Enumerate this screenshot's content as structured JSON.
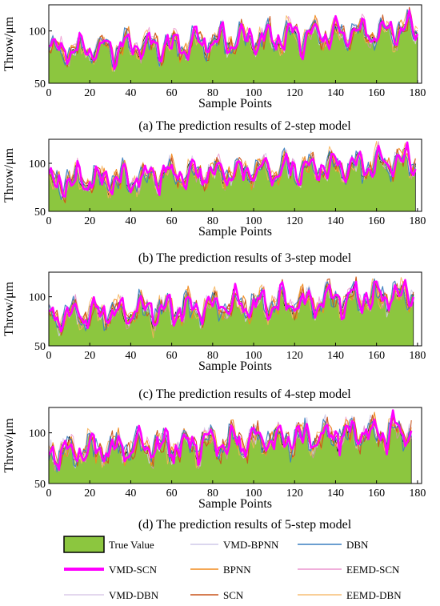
{
  "chart_data": {
    "type": "line",
    "panels": [
      {
        "caption": "(a) The prediction results of 2-step model",
        "xlabel": "Sample Points",
        "ylabel": "Throw/μm",
        "xlim": [
          0,
          182
        ],
        "ylim": [
          50,
          125
        ],
        "xticks": [
          0,
          20,
          40,
          60,
          80,
          100,
          120,
          140,
          160,
          180
        ],
        "yticks": [
          50,
          100
        ],
        "n_points": 180
      },
      {
        "caption": "(b) The prediction results of 3-step model",
        "xlabel": "Sample Points",
        "ylabel": "Throw/μm",
        "xlim": [
          0,
          182
        ],
        "ylim": [
          50,
          125
        ],
        "xticks": [
          0,
          20,
          40,
          60,
          80,
          100,
          120,
          140,
          160,
          180
        ],
        "yticks": [
          50,
          100
        ],
        "n_points": 179
      },
      {
        "caption": "(c) The prediction results of 4-step model",
        "xlabel": "Sample Points",
        "ylabel": "Throw/μm",
        "xlim": [
          0,
          182
        ],
        "ylim": [
          50,
          125
        ],
        "xticks": [
          0,
          20,
          40,
          60,
          80,
          100,
          120,
          140,
          160,
          180
        ],
        "yticks": [
          50,
          100
        ],
        "n_points": 178
      },
      {
        "caption": "(d) The prediction results of 5-step model",
        "xlabel": "Sample Points",
        "ylabel": "Throw/μm",
        "xlim": [
          0,
          182
        ],
        "ylim": [
          50,
          125
        ],
        "xticks": [
          0,
          20,
          40,
          60,
          80,
          100,
          120,
          140,
          160,
          180
        ],
        "yticks": [
          50,
          100
        ],
        "n_points": 177
      }
    ],
    "series": [
      {
        "name": "True Value",
        "kind": "area",
        "color": "#8cc63f"
      },
      {
        "name": "VMD-BPNN",
        "kind": "line",
        "color": "#cfc8e8"
      },
      {
        "name": "DBN",
        "kind": "line",
        "color": "#3a7fc0"
      },
      {
        "name": "VMD-SCN",
        "kind": "line",
        "color": "#ff00ff"
      },
      {
        "name": "BPNN",
        "kind": "line",
        "color": "#f08a1c"
      },
      {
        "name": "EEMD-SCN",
        "kind": "line",
        "color": "#e87fc5"
      },
      {
        "name": "VMD-DBN",
        "kind": "line",
        "color": "#dccbe8"
      },
      {
        "name": "SCN",
        "kind": "line",
        "color": "#c8531a"
      },
      {
        "name": "EEMD-DBN",
        "kind": "line",
        "color": "#f5b25a"
      }
    ],
    "legend_position": "bottom"
  }
}
